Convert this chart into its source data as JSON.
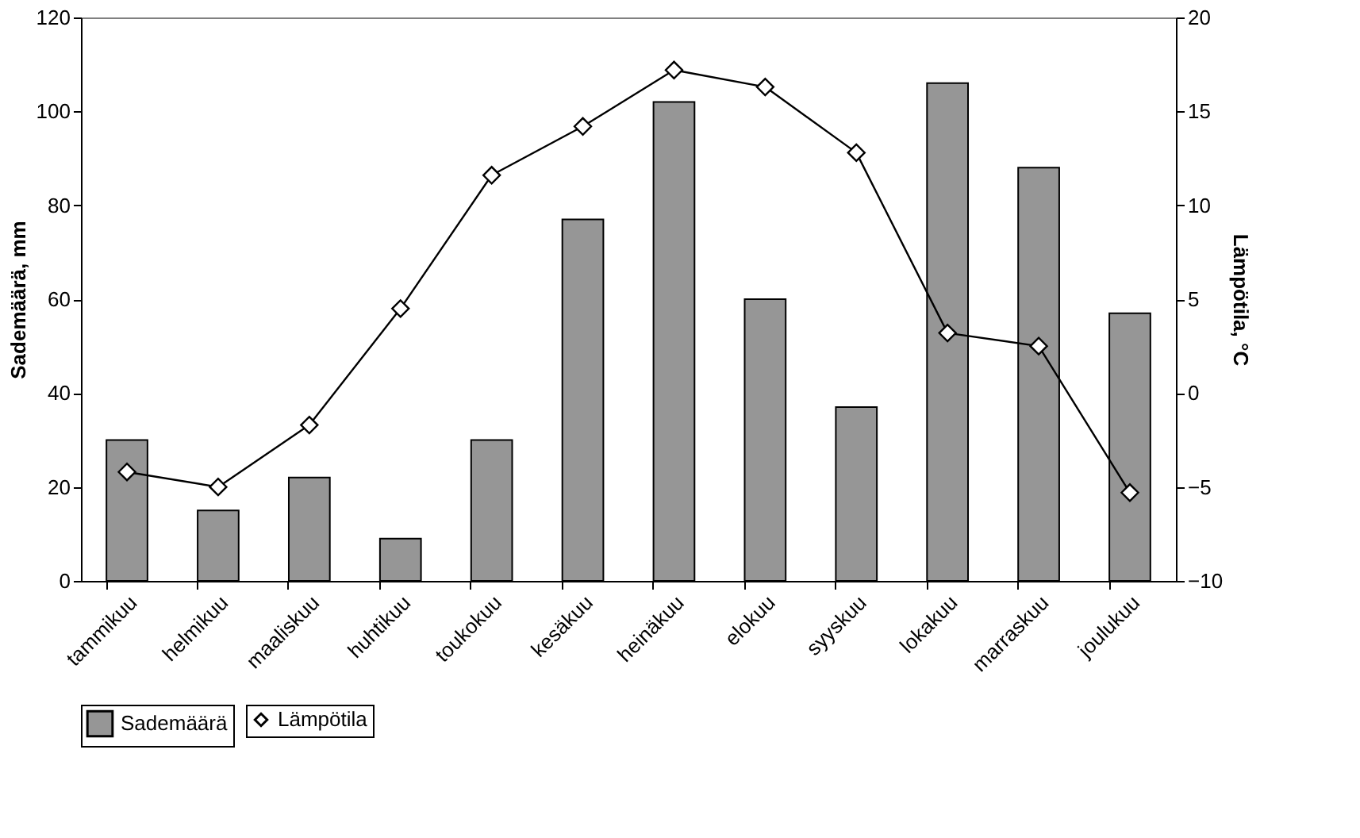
{
  "chart_data": {
    "type": "bar",
    "categories": [
      "tammikuu",
      "helmikuu",
      "maaliskuu",
      "huhtikuu",
      "toukokuu",
      "kesäkuu",
      "heinäkuu",
      "elokuu",
      "syyskuu",
      "lokakuu",
      "marraskuu",
      "joulukuu"
    ],
    "series": [
      {
        "name": "Sademäärä",
        "color": "#969696",
        "values": [
          30,
          15,
          22,
          9,
          30,
          77,
          102,
          60,
          37,
          106,
          88,
          57
        ]
      },
      {
        "name": "Lämpötila",
        "type": "line",
        "axis": "y2",
        "color": "#000000",
        "marker": "diamond",
        "line_style": "solid",
        "values": [
          -4.2,
          -5.0,
          -1.7,
          4.5,
          11.6,
          14.2,
          17.2,
          16.3,
          12.8,
          3.2,
          2.5,
          -5.3
        ]
      }
    ],
    "ylabel": "Sademäärä, mm",
    "y2label": "Lämpötila,  °C",
    "ylim": [
      0,
      120
    ],
    "yticks": [
      0,
      20,
      40,
      60,
      80,
      100,
      120
    ],
    "y2lim": [
      -10,
      20
    ],
    "y2ticks": [
      -10,
      -5,
      0,
      5,
      10,
      15,
      20
    ],
    "grid": false,
    "legend": "bottom"
  }
}
